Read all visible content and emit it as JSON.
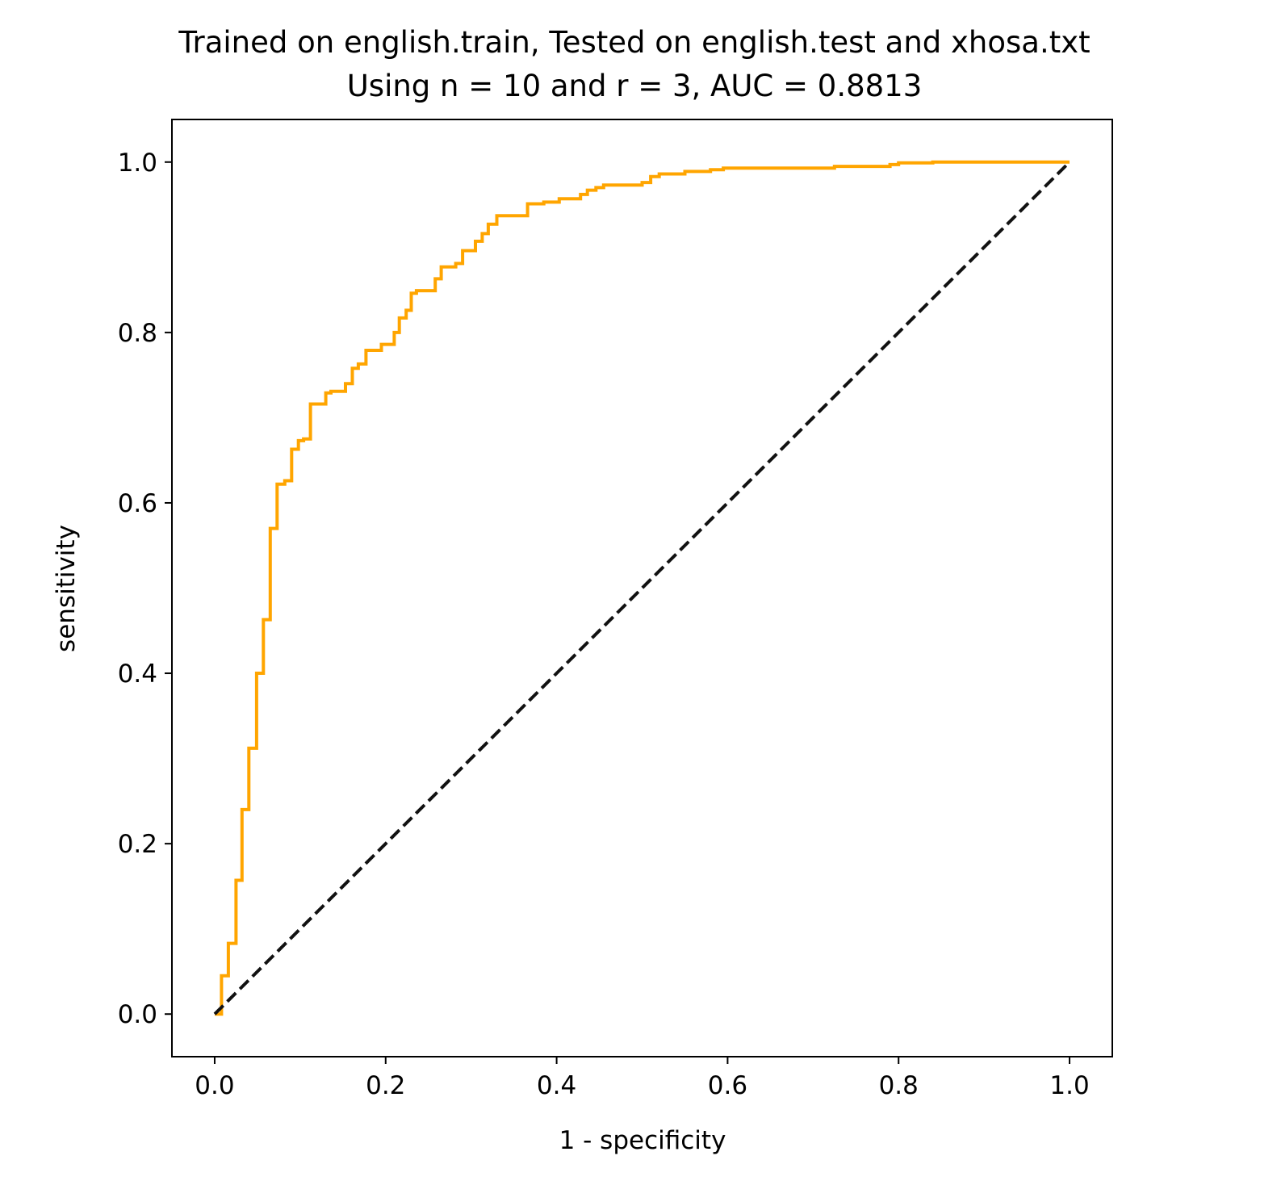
{
  "chart_data": {
    "type": "line",
    "title": "Trained on english.train, Tested on english.test and xhosa.txt",
    "subtitle": "Using n = 10 and r = 3, AUC = 0.8813",
    "xlabel": "1 - specificity",
    "ylabel": "sensitivity",
    "xlim": [
      -0.05,
      1.05
    ],
    "ylim": [
      -0.05,
      1.05
    ],
    "grid": false,
    "x_ticks": [
      0.0,
      0.2,
      0.4,
      0.6,
      0.8,
      1.0
    ],
    "y_ticks": [
      0.0,
      0.2,
      0.4,
      0.6,
      0.8,
      1.0
    ],
    "x_tick_labels": [
      "0.0",
      "0.2",
      "0.4",
      "0.6",
      "0.8",
      "1.0"
    ],
    "y_tick_labels": [
      "0.0",
      "0.2",
      "0.4",
      "0.6",
      "0.8",
      "1.0"
    ],
    "series": [
      {
        "color": "#FFA500",
        "style": "solid",
        "points": [
          [
            0.0,
            0.0
          ],
          [
            0.008,
            0.0
          ],
          [
            0.008,
            0.045
          ],
          [
            0.016,
            0.045
          ],
          [
            0.016,
            0.083
          ],
          [
            0.025,
            0.083
          ],
          [
            0.025,
            0.157
          ],
          [
            0.032,
            0.157
          ],
          [
            0.032,
            0.24
          ],
          [
            0.04,
            0.24
          ],
          [
            0.04,
            0.312
          ],
          [
            0.049,
            0.312
          ],
          [
            0.049,
            0.4
          ],
          [
            0.057,
            0.4
          ],
          [
            0.057,
            0.463
          ],
          [
            0.065,
            0.463
          ],
          [
            0.065,
            0.57
          ],
          [
            0.073,
            0.57
          ],
          [
            0.073,
            0.622
          ],
          [
            0.082,
            0.622
          ],
          [
            0.082,
            0.626
          ],
          [
            0.09,
            0.626
          ],
          [
            0.09,
            0.663
          ],
          [
            0.098,
            0.663
          ],
          [
            0.098,
            0.673
          ],
          [
            0.104,
            0.673
          ],
          [
            0.104,
            0.675
          ],
          [
            0.112,
            0.675
          ],
          [
            0.112,
            0.716
          ],
          [
            0.13,
            0.716
          ],
          [
            0.13,
            0.729
          ],
          [
            0.136,
            0.729
          ],
          [
            0.136,
            0.731
          ],
          [
            0.153,
            0.731
          ],
          [
            0.153,
            0.74
          ],
          [
            0.161,
            0.74
          ],
          [
            0.161,
            0.758
          ],
          [
            0.168,
            0.758
          ],
          [
            0.168,
            0.763
          ],
          [
            0.177,
            0.763
          ],
          [
            0.177,
            0.779
          ],
          [
            0.195,
            0.779
          ],
          [
            0.195,
            0.786
          ],
          [
            0.21,
            0.786
          ],
          [
            0.21,
            0.8
          ],
          [
            0.216,
            0.8
          ],
          [
            0.216,
            0.817
          ],
          [
            0.224,
            0.817
          ],
          [
            0.224,
            0.826
          ],
          [
            0.23,
            0.826
          ],
          [
            0.23,
            0.846
          ],
          [
            0.236,
            0.846
          ],
          [
            0.236,
            0.849
          ],
          [
            0.258,
            0.849
          ],
          [
            0.258,
            0.863
          ],
          [
            0.265,
            0.863
          ],
          [
            0.265,
            0.877
          ],
          [
            0.282,
            0.877
          ],
          [
            0.282,
            0.881
          ],
          [
            0.29,
            0.881
          ],
          [
            0.29,
            0.896
          ],
          [
            0.305,
            0.896
          ],
          [
            0.305,
            0.907
          ],
          [
            0.313,
            0.907
          ],
          [
            0.313,
            0.916
          ],
          [
            0.32,
            0.916
          ],
          [
            0.32,
            0.927
          ],
          [
            0.33,
            0.927
          ],
          [
            0.33,
            0.937
          ],
          [
            0.366,
            0.937
          ],
          [
            0.366,
            0.951
          ],
          [
            0.385,
            0.951
          ],
          [
            0.385,
            0.953
          ],
          [
            0.403,
            0.953
          ],
          [
            0.403,
            0.957
          ],
          [
            0.428,
            0.957
          ],
          [
            0.428,
            0.962
          ],
          [
            0.436,
            0.962
          ],
          [
            0.436,
            0.967
          ],
          [
            0.446,
            0.967
          ],
          [
            0.446,
            0.97
          ],
          [
            0.455,
            0.97
          ],
          [
            0.455,
            0.973
          ],
          [
            0.5,
            0.973
          ],
          [
            0.5,
            0.976
          ],
          [
            0.51,
            0.976
          ],
          [
            0.51,
            0.983
          ],
          [
            0.52,
            0.983
          ],
          [
            0.52,
            0.986
          ],
          [
            0.55,
            0.986
          ],
          [
            0.55,
            0.989
          ],
          [
            0.58,
            0.989
          ],
          [
            0.58,
            0.991
          ],
          [
            0.595,
            0.991
          ],
          [
            0.595,
            0.993
          ],
          [
            0.725,
            0.993
          ],
          [
            0.725,
            0.995
          ],
          [
            0.79,
            0.995
          ],
          [
            0.79,
            0.997
          ],
          [
            0.8,
            0.997
          ],
          [
            0.8,
            0.999
          ],
          [
            0.84,
            0.999
          ],
          [
            0.84,
            1.0
          ],
          [
            1.0,
            1.0
          ]
        ]
      },
      {
        "color": "#111111",
        "style": "dashed",
        "points": [
          [
            0.0,
            0.0
          ],
          [
            1.0,
            1.0
          ]
        ]
      }
    ]
  }
}
